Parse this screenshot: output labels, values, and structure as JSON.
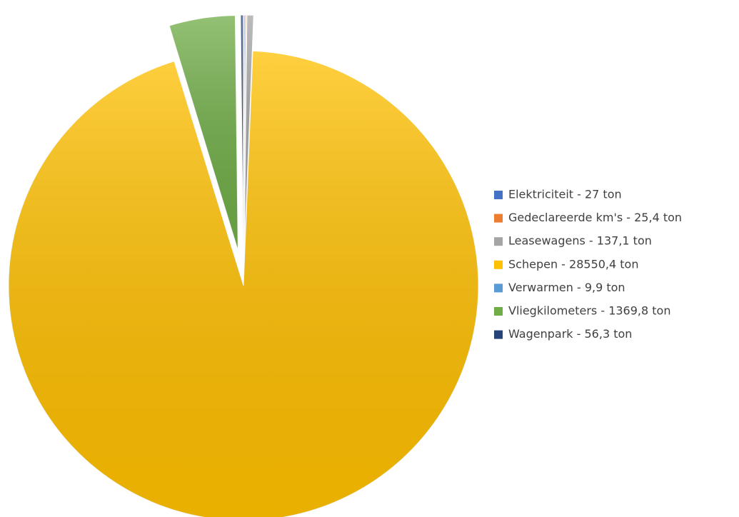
{
  "chart_data": {
    "type": "pie",
    "categories": [
      "Elektriciteit - 27 ton",
      "Gedeclareerde km's - 25,4 ton",
      "Leasewagens - 137,1 ton",
      "Schepen - 28550,4 ton",
      "Verwarmen - 9,9 ton",
      "Vliegkilometers - 1369,8 ton",
      "Wagenpark - 56,3 ton"
    ],
    "values": [
      27,
      25.4,
      137.1,
      28550.4,
      9.9,
      1369.8,
      56.3
    ],
    "colors": [
      "#4472c4",
      "#ed7d31",
      "#a5a5a5",
      "#ffc000",
      "#5b9bd5",
      "#70ad47",
      "#264478"
    ],
    "legend": "right"
  }
}
